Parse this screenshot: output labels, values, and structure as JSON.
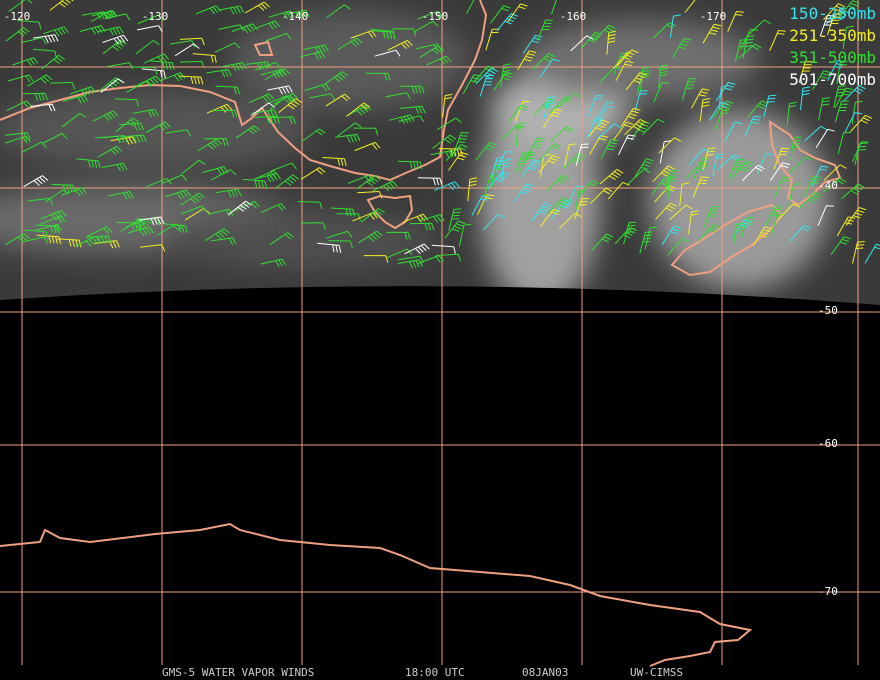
{
  "longitude_labels": [
    "-120",
    "-130",
    "-140",
    "-150",
    "-160",
    "-170"
  ],
  "latitude_labels": [
    "-40",
    "-50",
    "-60",
    "-70"
  ],
  "legend": [
    {
      "label": "150-250mb",
      "color": "#33e6f0"
    },
    {
      "label": "251-350mb",
      "color": "#f4f020"
    },
    {
      "label": "351-500mb",
      "color": "#30e030"
    },
    {
      "label": "501-700mb",
      "color": "#ffffff"
    }
  ],
  "footer": [
    "GMS-5 WATER VAPOR WINDS",
    "18:00 UTC",
    "08JAN03",
    "UW-CIMSS"
  ]
}
